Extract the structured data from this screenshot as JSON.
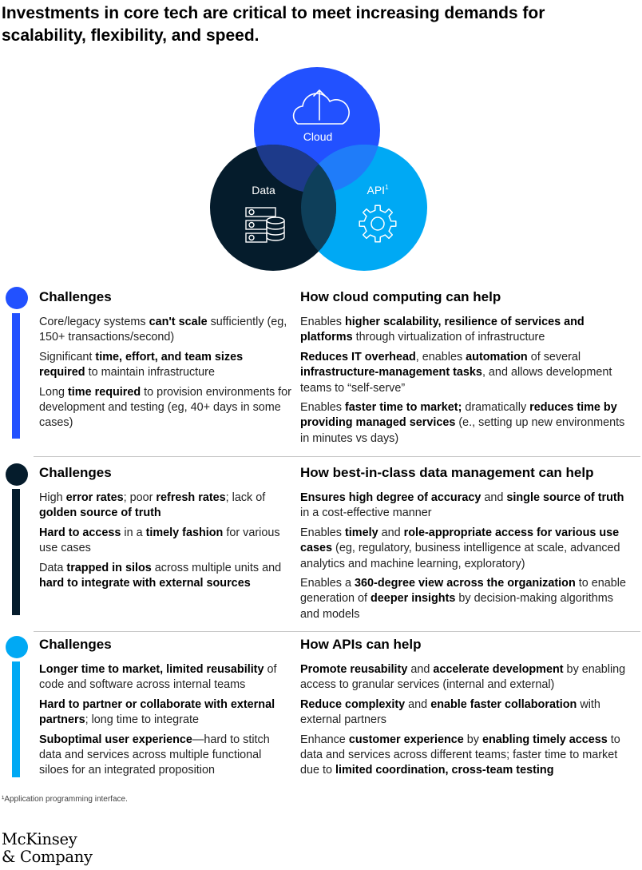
{
  "title": "Investments in core tech are critical to meet increasing demands for scalability, flexibility, and speed.",
  "venn": {
    "cloud_label": "Cloud",
    "data_label": "Data",
    "api_label": "API",
    "api_sup": "1",
    "colors": {
      "cloud": "#2251FF",
      "data": "#051C2C",
      "api": "#00A9F4"
    }
  },
  "sections": [
    {
      "color": "#2251FF",
      "left_heading": "Challenges",
      "right_heading": "How cloud computing can help",
      "left_items": [
        [
          {
            "t": "Core/legacy systems "
          },
          {
            "b": "can't scale"
          },
          {
            "t": " sufficiently (eg, 150+ transactions/second)"
          }
        ],
        [
          {
            "t": "Significant "
          },
          {
            "b": "time, effort, and team sizes required"
          },
          {
            "t": " to maintain infrastructure"
          }
        ],
        [
          {
            "t": "Long "
          },
          {
            "b": "time required"
          },
          {
            "t": " to provision environments for development and testing (eg, 40+ days in some cases)"
          }
        ]
      ],
      "right_items": [
        [
          {
            "t": "Enables "
          },
          {
            "b": "higher scalability, resilience of services and platforms"
          },
          {
            "t": " through virtualization of infrastructure"
          }
        ],
        [
          {
            "b": "Reduces IT overhead"
          },
          {
            "t": ", enables "
          },
          {
            "b": "automation"
          },
          {
            "t": " of several "
          },
          {
            "b": "infrastructure-management tasks"
          },
          {
            "t": ", and allows development teams to “self-serve”"
          }
        ],
        [
          {
            "t": "Enables "
          },
          {
            "b": "faster time to market;"
          },
          {
            "t": " dramatically "
          },
          {
            "b": "reduces time by providing managed services"
          },
          {
            "t": " (e., setting up new environments in minutes vs days)"
          }
        ]
      ]
    },
    {
      "color": "#051C2C",
      "left_heading": "Challenges",
      "right_heading": "How best-in-class data management can help",
      "left_items": [
        [
          {
            "t": "High "
          },
          {
            "b": "error rates"
          },
          {
            "t": "; poor "
          },
          {
            "b": "refresh rates"
          },
          {
            "t": "; lack of "
          },
          {
            "b": "golden source  of truth"
          }
        ],
        [
          {
            "b": "Hard to access"
          },
          {
            "t": " in a "
          },
          {
            "b": "timely fashion"
          },
          {
            "t": " for various use cases"
          }
        ],
        [
          {
            "t": "Data "
          },
          {
            "b": "trapped in silos"
          },
          {
            "t": " across multiple units and "
          },
          {
            "b": "hard to integrate with external sources"
          }
        ]
      ],
      "right_items": [
        [
          {
            "b": "Ensures high degree of accuracy"
          },
          {
            "t": " and "
          },
          {
            "b": "single source of truth"
          },
          {
            "t": " in a cost-effective manner"
          }
        ],
        [
          {
            "t": "Enables "
          },
          {
            "b": "timely"
          },
          {
            "t": " and "
          },
          {
            "b": "role-appropriate access for various use cases"
          },
          {
            "t": " (eg, regulatory, business intelligence at scale, advanced analytics and machine learning, exploratory)"
          }
        ],
        [
          {
            "t": "Enables a "
          },
          {
            "b": "360-degree view across the organization"
          },
          {
            "t": " to enable generation of "
          },
          {
            "b": "deeper insights"
          },
          {
            "t": " by decision-making algorithms and models"
          }
        ]
      ]
    },
    {
      "color": "#00A9F4",
      "left_heading": "Challenges",
      "right_heading": "How APIs can help",
      "left_items": [
        [
          {
            "b": "Longer time to market, limited reusability"
          },
          {
            "t": " of code and software across internal teams"
          }
        ],
        [
          {
            "b": "Hard to partner or collaborate with external partners"
          },
          {
            "t": "; long time to integrate"
          }
        ],
        [
          {
            "b": "Suboptimal user experience"
          },
          {
            "t": "—hard to stitch data and services across multiple functional siloes for an integrated proposition"
          }
        ]
      ],
      "right_items": [
        [
          {
            "b": "Promote reusability"
          },
          {
            "t": " and "
          },
          {
            "b": "accelerate development"
          },
          {
            "t": " by enabling access to granular services (internal and external)"
          }
        ],
        [
          {
            "b": "Reduce complexity"
          },
          {
            "t": " and "
          },
          {
            "b": "enable faster collaboration"
          },
          {
            "t": " with external partners"
          }
        ],
        [
          {
            "t": "Enhance "
          },
          {
            "b": "customer experience"
          },
          {
            "t": " by "
          },
          {
            "b": "enabling timely access"
          },
          {
            "t": " to data and services across different teams; faster time to market due to "
          },
          {
            "b": "limited coordination, cross-team testing"
          }
        ]
      ]
    }
  ],
  "footnote": "¹Application programming interface.",
  "logo": {
    "line1": "McKinsey",
    "line2": "& Company"
  }
}
